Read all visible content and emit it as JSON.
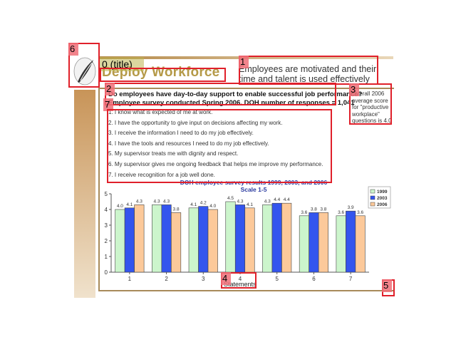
{
  "header": {
    "title": "Deploy Workforce",
    "title_tag": "0 (title)",
    "subtitle": "Employees are motivated and their time and talent is used effectively"
  },
  "survey": {
    "question": "Do employees have day-to-day support to enable successful job performance?",
    "info": "Employee survey conducted Spring 2006.  DOH number of responses = 1,041",
    "statements": [
      "1. I know what is expected of me at work.",
      "2. I have the opportunity to give input on decisions affecting my work.",
      "3. I receive the information I need to do my job effectively.",
      "4. I have the tools and resources I need to do my job effectively.",
      "5. My supervisor treats me with dignity and respect.",
      "6. My supervisor gives me ongoing feedback that helps me improve my performance.",
      "7. I receive recognition for a job well done."
    ]
  },
  "callout": {
    "text": "Overall 2006 average score for \"productive workplace\" questions is 4.0"
  },
  "annotations": [
    {
      "tag": "0 (title)"
    },
    {
      "tag": "1"
    },
    {
      "tag": "2"
    },
    {
      "tag": "3"
    },
    {
      "tag": "4"
    },
    {
      "tag": "5"
    },
    {
      "tag": "6"
    },
    {
      "tag": "7"
    }
  ],
  "chart_data": {
    "type": "bar",
    "title": "DOH employee survey results 1999, 2003, and 2006",
    "subtitle": "Scale 1-5",
    "xlabel": "Statements",
    "ylabel": "",
    "categories": [
      "1",
      "2",
      "3",
      "4",
      "5",
      "6",
      "7"
    ],
    "ylim": [
      0,
      5
    ],
    "yticks": [
      0,
      1,
      2,
      3,
      4,
      5
    ],
    "grid": false,
    "legend_position": "top-right",
    "series": [
      {
        "name": "1999",
        "color": "#ccf5cc",
        "values": [
          4.0,
          4.3,
          4.1,
          4.5,
          4.3,
          3.6,
          3.6
        ]
      },
      {
        "name": "2003",
        "color": "#3355ee",
        "values": [
          4.1,
          4.3,
          4.2,
          4.3,
          4.4,
          3.8,
          3.9
        ]
      },
      {
        "name": "2006",
        "color": "#fcc99a",
        "values": [
          4.3,
          3.8,
          4.0,
          4.1,
          4.4,
          3.8,
          3.6
        ]
      }
    ]
  }
}
